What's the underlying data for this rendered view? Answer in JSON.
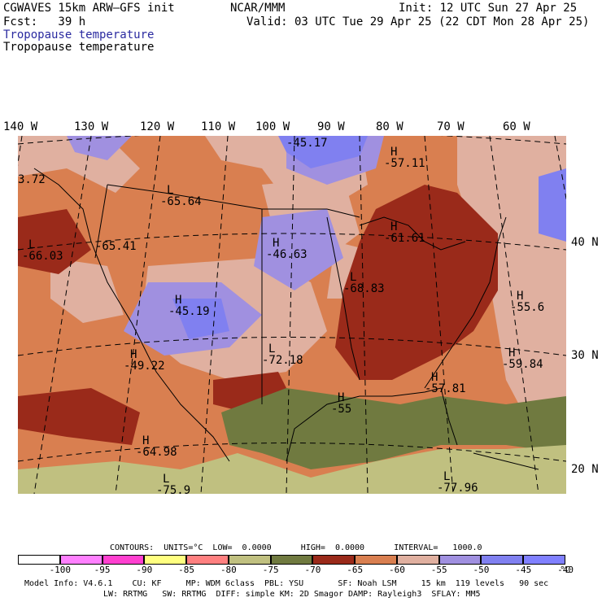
{
  "header": {
    "model": "CGWAVES 15km ARW–GFS init",
    "org": "NCAR/MMM",
    "init": "Init: 12 UTC Sun 27 Apr 25",
    "fcst": "Fcst:   39 h",
    "valid": "Valid: 03 UTC Tue 29 Apr 25 (22 CDT Mon 28 Apr 25)",
    "field_blue": "Tropopause temperature",
    "field_black": "Tropopause temperature"
  },
  "axes": {
    "longitudes": [
      "140 W",
      "130 W",
      "120 W",
      "110 W",
      "100 W",
      "90 W",
      "80 W",
      "70 W",
      "60 W"
    ],
    "latitudes": [
      "40 N",
      "30 N",
      "20 N"
    ]
  },
  "map_labels": [
    {
      "id": "h1",
      "letter": "H",
      "value": "-45.17"
    },
    {
      "id": "h2",
      "letter": "H",
      "value": "-57.11"
    },
    {
      "id": "l1",
      "letter": "",
      "value": "3.72"
    },
    {
      "id": "l2",
      "letter": "L",
      "value": "-65.64"
    },
    {
      "id": "l3",
      "letter": "L",
      "value": "-66.03"
    },
    {
      "id": "h3",
      "letter": "",
      "value": "-65.41"
    },
    {
      "id": "h4",
      "letter": "H",
      "value": "-46.63"
    },
    {
      "id": "h5",
      "letter": "H",
      "value": "-61.61"
    },
    {
      "id": "l4",
      "letter": "L",
      "value": "-68.83"
    },
    {
      "id": "h6",
      "letter": "H",
      "value": "-45.19"
    },
    {
      "id": "h7",
      "letter": "H",
      "value": "-55.6"
    },
    {
      "id": "h8",
      "letter": "H",
      "value": "-49.22"
    },
    {
      "id": "l5",
      "letter": "L",
      "value": "-72.18"
    },
    {
      "id": "h9",
      "letter": "H",
      "value": "-59.84"
    },
    {
      "id": "h10",
      "letter": "H",
      "value": "-57.81"
    },
    {
      "id": "h11",
      "letter": "H",
      "value": "-55"
    },
    {
      "id": "h12",
      "letter": "H",
      "value": "-64.98"
    },
    {
      "id": "l6",
      "letter": "L",
      "value": "-75.9"
    },
    {
      "id": "l7",
      "letter": "L",
      "value": "-77.96"
    }
  ],
  "contours_line": "CONTOURS:  UNITS=°C  LOW=  0.0000      HIGH=  0.0000      INTERVAL=   1000.0",
  "colorbar": {
    "colors": [
      "#ffffff",
      "#ff80ff",
      "#ff40d0",
      "#ffff80",
      "#ff8080",
      "#c0c080",
      "#707a40",
      "#9a2a1a",
      "#d97f50",
      "#e0b0a0",
      "#a090e0",
      "#8080f0",
      "#8080ff"
    ],
    "labels": [
      "-100",
      "-95",
      "-90",
      "-85",
      "-80",
      "-75",
      "-70",
      "-65",
      "-60",
      "-55",
      "-50",
      "-45",
      "-40",
      "°C"
    ]
  },
  "footer": {
    "line1": "Model Info: V4.6.1    CU: KF     MP: WDM 6class  PBL: YSU       SF: Noah LSM     15 km  119 levels   90 sec",
    "line2": "LW: RRTMG   SW: RRTMG  DIFF: simple KM: 2D Smagor DAMP: Rayleigh3  SFLAY: MM5"
  }
}
